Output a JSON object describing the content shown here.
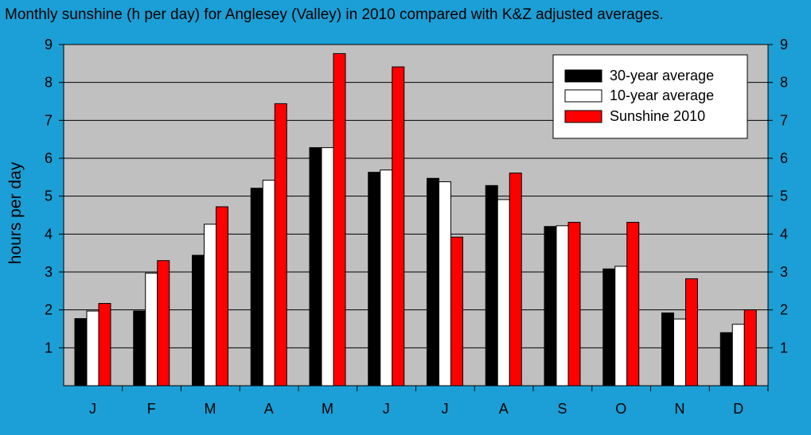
{
  "chart_data": {
    "type": "bar",
    "title": "Monthly sunshine (h per day) for Anglesey (Valley) in 2010 compared with K&Z adjusted averages.",
    "ylabel": "hours per day",
    "xlabel": "",
    "categories": [
      "J",
      "F",
      "M",
      "A",
      "M",
      "J",
      "J",
      "A",
      "S",
      "O",
      "N",
      "D"
    ],
    "ylim": [
      0,
      9
    ],
    "yticks": [
      1,
      2,
      3,
      4,
      5,
      6,
      7,
      8,
      9
    ],
    "grid": true,
    "legend_position": "top-right",
    "series": [
      {
        "name": "30-year average",
        "color": "#000000",
        "values": [
          1.77,
          1.97,
          3.44,
          5.21,
          6.28,
          5.63,
          5.47,
          5.28,
          4.2,
          3.08,
          1.92,
          1.4
        ]
      },
      {
        "name": "10-year average",
        "color": "#ffffff",
        "values": [
          1.97,
          2.97,
          4.26,
          5.42,
          6.28,
          5.69,
          5.38,
          4.91,
          4.22,
          3.15,
          1.76,
          1.62
        ]
      },
      {
        "name": "Sunshine 2010",
        "color": "#ff0000",
        "values": [
          2.17,
          3.3,
          4.72,
          7.44,
          8.76,
          8.41,
          3.92,
          5.61,
          4.31,
          4.31,
          2.82,
          2.0
        ]
      }
    ]
  },
  "colors": {
    "background": "#1b9fd6",
    "plot_area": "#c0c0c0",
    "grid": "#000000"
  }
}
